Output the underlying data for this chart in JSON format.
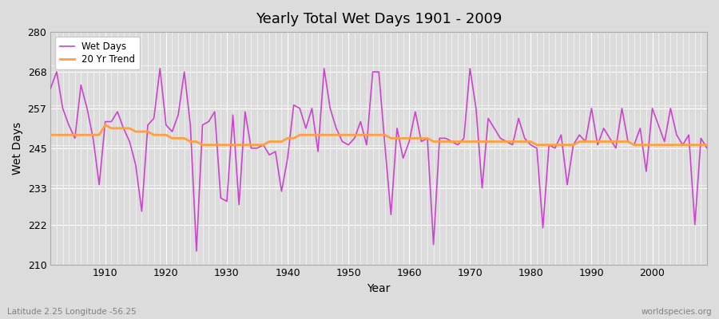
{
  "title": "Yearly Total Wet Days 1901 - 2009",
  "xlabel": "Year",
  "ylabel": "Wet Days",
  "subtitle": "Latitude 2.25 Longitude -56.25",
  "watermark": "worldspecies.org",
  "line_color": "#CC44CC",
  "trend_color": "#FFA040",
  "background_color": "#DCDCDC",
  "plot_bg_color": "#DCDCDC",
  "grid_color": "#FFFFFF",
  "ylim": [
    210,
    280
  ],
  "yticks": [
    210,
    222,
    233,
    245,
    257,
    268,
    280
  ],
  "xticks": [
    1910,
    1920,
    1930,
    1940,
    1950,
    1960,
    1970,
    1980,
    1990,
    2000
  ],
  "years": [
    1901,
    1902,
    1903,
    1904,
    1905,
    1906,
    1907,
    1908,
    1909,
    1910,
    1911,
    1912,
    1913,
    1914,
    1915,
    1916,
    1917,
    1918,
    1919,
    1920,
    1921,
    1922,
    1923,
    1924,
    1925,
    1926,
    1927,
    1928,
    1929,
    1930,
    1931,
    1932,
    1933,
    1934,
    1935,
    1936,
    1937,
    1938,
    1939,
    1940,
    1941,
    1942,
    1943,
    1944,
    1945,
    1946,
    1947,
    1948,
    1949,
    1950,
    1951,
    1952,
    1953,
    1954,
    1955,
    1956,
    1957,
    1958,
    1959,
    1960,
    1961,
    1962,
    1963,
    1964,
    1965,
    1966,
    1967,
    1968,
    1969,
    1970,
    1971,
    1972,
    1973,
    1974,
    1975,
    1976,
    1977,
    1978,
    1979,
    1980,
    1981,
    1982,
    1983,
    1984,
    1985,
    1986,
    1987,
    1988,
    1989,
    1990,
    1991,
    1992,
    1993,
    1994,
    1995,
    1996,
    1997,
    1998,
    1999,
    2000,
    2001,
    2002,
    2003,
    2004,
    2005,
    2006,
    2007,
    2008,
    2009
  ],
  "wet_days": [
    263,
    268,
    257,
    252,
    248,
    264,
    257,
    248,
    234,
    253,
    253,
    256,
    251,
    247,
    240,
    226,
    252,
    254,
    269,
    252,
    250,
    255,
    268,
    252,
    214,
    252,
    253,
    256,
    230,
    229,
    255,
    228,
    256,
    245,
    245,
    246,
    243,
    244,
    232,
    242,
    258,
    257,
    251,
    257,
    244,
    269,
    257,
    251,
    247,
    246,
    248,
    253,
    246,
    268,
    268,
    246,
    225,
    251,
    242,
    247,
    256,
    247,
    248,
    216,
    248,
    248,
    247,
    246,
    248,
    269,
    257,
    233,
    254,
    251,
    248,
    247,
    246,
    254,
    248,
    246,
    245,
    221,
    246,
    245,
    249,
    234,
    246,
    249,
    247,
    257,
    246,
    251,
    248,
    245,
    257,
    247,
    246,
    251,
    238,
    257,
    252,
    247,
    257,
    249,
    246,
    249,
    222,
    248,
    245
  ],
  "trend_days": [
    249,
    249,
    249,
    249,
    249,
    249,
    249,
    249,
    249,
    252,
    251,
    251,
    251,
    251,
    250,
    250,
    250,
    249,
    249,
    249,
    248,
    248,
    248,
    247,
    247,
    246,
    246,
    246,
    246,
    246,
    246,
    246,
    246,
    246,
    246,
    246,
    247,
    247,
    247,
    248,
    248,
    249,
    249,
    249,
    249,
    249,
    249,
    249,
    249,
    249,
    249,
    249,
    249,
    249,
    249,
    249,
    248,
    248,
    248,
    248,
    248,
    248,
    248,
    247,
    247,
    247,
    247,
    247,
    247,
    247,
    247,
    247,
    247,
    247,
    247,
    247,
    247,
    247,
    247,
    247,
    246,
    246,
    246,
    246,
    246,
    246,
    246,
    247,
    247,
    247,
    247,
    247,
    247,
    247,
    247,
    247,
    246,
    246,
    246,
    246,
    246,
    246,
    246,
    246,
    246,
    246,
    246,
    246,
    246
  ]
}
